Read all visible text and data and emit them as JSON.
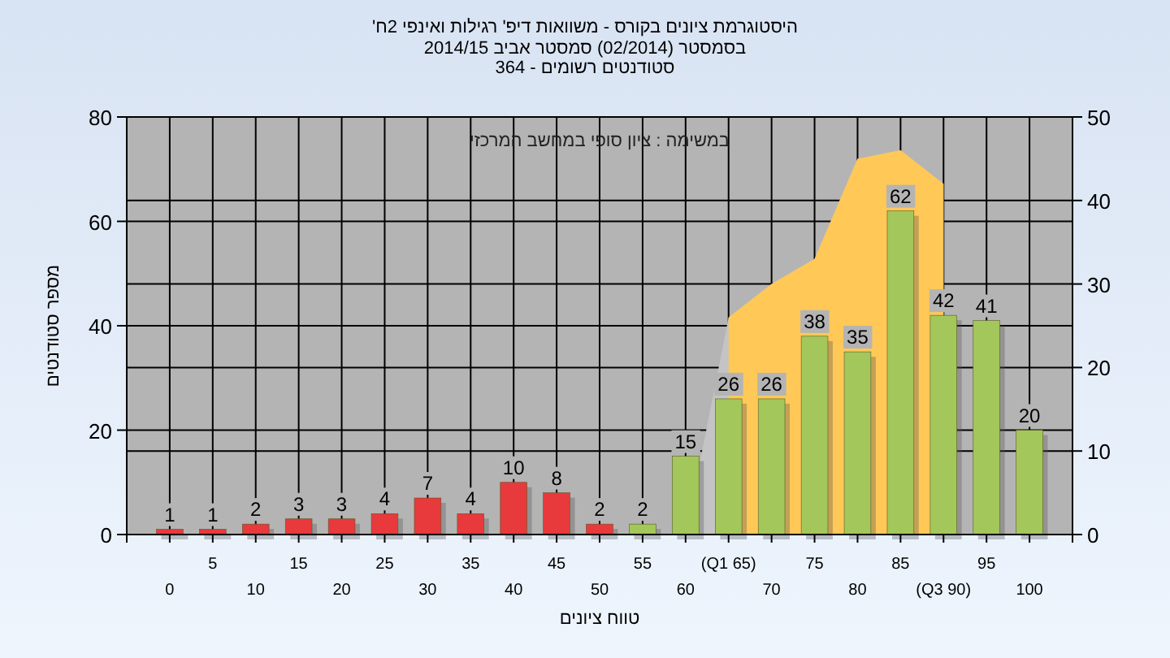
{
  "chart_data": {
    "type": "bar",
    "title": "היסטוגרמת ציונים בקורס - משוואות דיפ' רגילות ואינפי 2ח'",
    "subtitle": "בסמסטר  (02/2014)  סמסטר אביב 2014/15\nסטודנטים רשומים - 364",
    "xlabel": "טווח ציונים",
    "ylabel": "מספר סטודנטים",
    "annotations": [
      "במשימה : ציון סופי במחשב המרכזי"
    ],
    "categories": [
      "0",
      "5",
      "10",
      "15",
      "20",
      "25",
      "30",
      "35",
      "40",
      "45",
      "50",
      "55",
      "60",
      "(Q1 65)",
      "70",
      "75",
      "80",
      "85",
      "(Q3 90)",
      "95",
      "100"
    ],
    "series": [
      {
        "type": "area",
        "axis": "y2",
        "color": "#c4c4c4",
        "values": [
          null,
          null,
          null,
          null,
          null,
          null,
          null,
          null,
          null,
          null,
          null,
          null,
          0,
          26,
          30,
          33,
          45,
          46,
          42,
          null,
          null
        ]
      },
      {
        "type": "area",
        "axis": "y2",
        "color": "#ffc857",
        "values": [
          null,
          null,
          null,
          null,
          null,
          null,
          null,
          null,
          null,
          null,
          null,
          null,
          null,
          26,
          30,
          33,
          45,
          46,
          42,
          null,
          null
        ]
      },
      {
        "colors": [
          "#e8393c",
          "#e8393c",
          "#e8393c",
          "#e8393c",
          "#e8393c",
          "#e8393c",
          "#e8393c",
          "#e8393c",
          "#e8393c",
          "#e8393c",
          "#e8393c",
          "#a3c75a",
          "#a3c75a",
          "#a3c75a",
          "#a3c75a",
          "#a3c75a",
          "#a3c75a",
          "#a3c75a",
          "#a3c75a",
          "#a3c75a",
          "#a3c75a"
        ],
        "values": [
          1,
          1,
          2,
          3,
          3,
          4,
          7,
          4,
          10,
          8,
          2,
          2,
          15,
          26,
          26,
          38,
          35,
          62,
          42,
          41,
          20
        ],
        "value_labels": [
          "1",
          "1",
          "2",
          "3",
          "3",
          "4",
          "7",
          "4",
          "10",
          "8",
          "2",
          "2",
          "15",
          "26",
          "26",
          "38",
          "35",
          "62",
          "42",
          "41",
          "20"
        ]
      }
    ],
    "ylim": [
      0,
      80
    ],
    "yticks": [
      0,
      20,
      40,
      60,
      80
    ],
    "y2lim": [
      0,
      50
    ],
    "y2ticks": [
      0,
      10,
      20,
      30,
      40,
      50
    ],
    "grid": true
  }
}
